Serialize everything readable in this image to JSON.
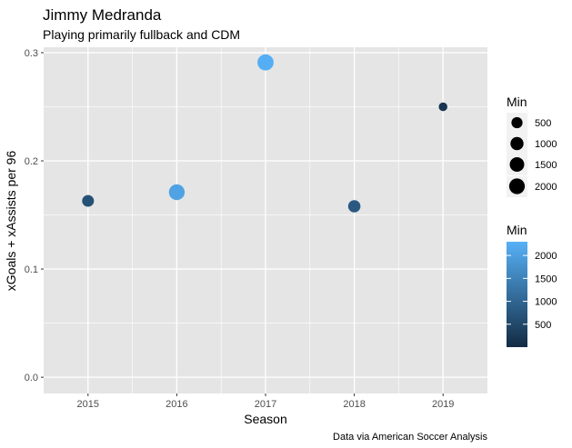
{
  "chart_data": {
    "type": "scatter",
    "title": "Jimmy Medranda",
    "subtitle": "Playing primarily fullback and CDM",
    "xlabel": "Season",
    "ylabel": "xGoals + xAssists per 96",
    "caption": "Data via American Soccer Analysis",
    "x_ticks": [
      2015,
      2016,
      2017,
      2018,
      2019
    ],
    "y_ticks": [
      0.0,
      0.1,
      0.2,
      0.3
    ],
    "y_tick_labels": [
      "0.0",
      "0.1",
      "0.2",
      "0.3"
    ],
    "xlim": [
      2014.5,
      2019.5
    ],
    "ylim": [
      -0.015,
      0.305
    ],
    "grid": true,
    "points": [
      {
        "season": 2015,
        "value": 0.163,
        "min": 650
      },
      {
        "season": 2016,
        "value": 0.171,
        "min": 2050
      },
      {
        "season": 2017,
        "value": 0.291,
        "min": 2250
      },
      {
        "season": 2018,
        "value": 0.158,
        "min": 780
      },
      {
        "season": 2019,
        "value": 0.25,
        "min": 180
      }
    ],
    "size_legend": {
      "title": "Min",
      "breaks": [
        500,
        1000,
        1500,
        2000
      ],
      "labels": [
        "500",
        "1000",
        "1500",
        "2000"
      ]
    },
    "color_legend": {
      "title": "Min",
      "breaks": [
        500,
        1000,
        1500,
        2000
      ],
      "labels": [
        "500",
        "1000",
        "1500",
        "2000"
      ],
      "range": [
        0,
        2300
      ],
      "low_color": "#132B43",
      "high_color": "#56B1F7"
    },
    "panel_color": "#E5E5E5",
    "grid_color": "#FFFFFF"
  }
}
